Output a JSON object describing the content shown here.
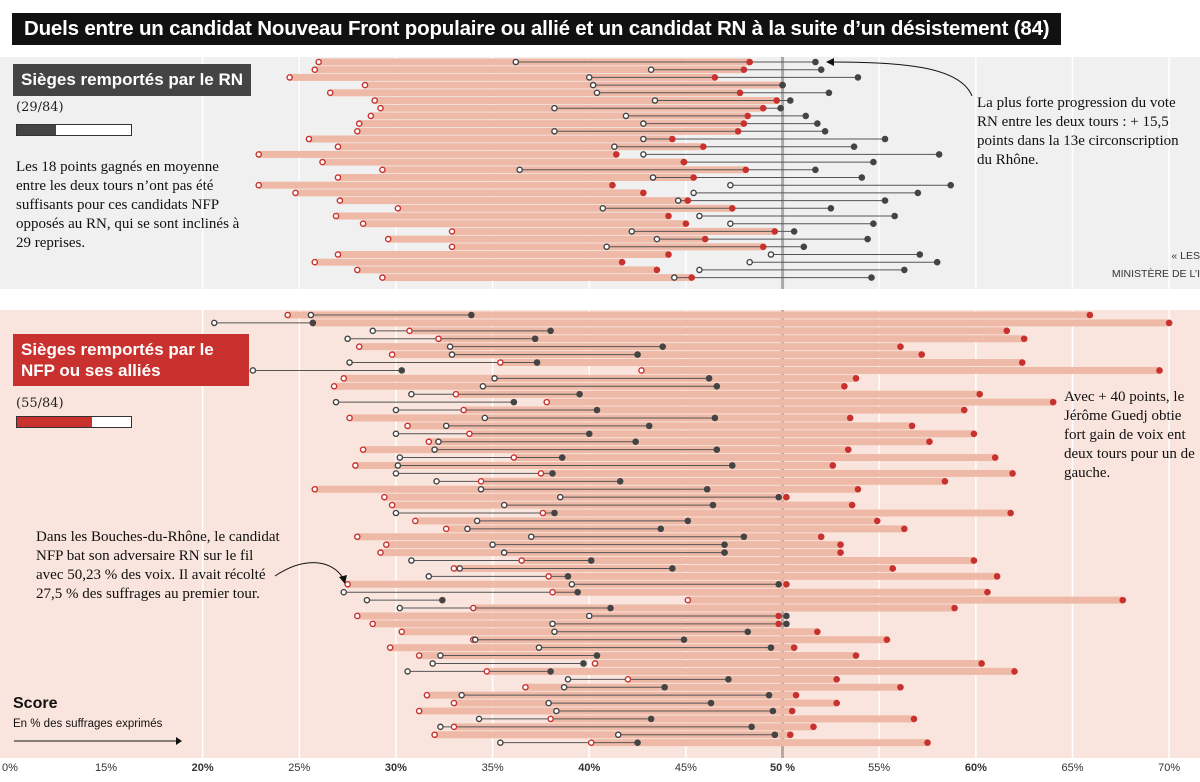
{
  "title": "Duels entre un candidat Nouveau Front populaire ou allié et un candidat RN à la suite d’un désistement (84)",
  "rn_section": {
    "label": "Sièges remportés par le RN",
    "count_text": "(29/84)",
    "won": 29,
    "total": 84,
    "note": "Les 18 points gagnés en moyenne entre les deux tours n’ont pas été suffisants pour ces candidats NFP opposés au RN, qui se sont inclinés à 29 reprises.",
    "callout": "La plus forte progression du vote RN entre les deux tours : + 15,5 points dans la 13e circonscription du Rhône.",
    "source_line1": "« LES",
    "source_line2": "MINISTÈRE DE L’I"
  },
  "nfp_section": {
    "label": "Sièges remportés par le NFP ou ses alliés",
    "count_text": "(55/84)",
    "won": 55,
    "total": 84,
    "callout_right": "Avec + 40 points, le Jérôme Guedj obtie fort gain de voix ent deux tours pour un de gauche.",
    "callout_left": "Dans les Bouches-du-Rhône, le candidat NFP bat son adversaire RN sur le fil avec 50,23 % des voix. Il avait récolté 27,5 % des suffrages au premier tour."
  },
  "score_label": "Score",
  "score_sublabel": "En % des suffrages exprimés",
  "colors": {
    "nfp": "#c8312d",
    "rn": "#444444",
    "nfp_bar": "#efb9a7",
    "rn_bar": "#ffffff"
  },
  "chart_data": {
    "type": "scatter",
    "xlabel": "En % des suffrages exprimés",
    "xlim": [
      0,
      70
    ],
    "x_ticks": [
      0,
      15,
      20,
      25,
      30,
      35,
      40,
      45,
      50,
      55,
      60,
      65,
      70
    ],
    "x_tick_labels": [
      "0%",
      "15%",
      "20%",
      "25%",
      "30%",
      "35%",
      "40%",
      "45%",
      "50 %",
      "55%",
      "60%",
      "65%",
      "70%"
    ],
    "legend": "first round = hollow marker, second round = filled marker",
    "rn_won": [
      {
        "nfp1": 26.0,
        "nfp2": 48.3,
        "rn1": 36.2,
        "rn2": 51.7
      },
      {
        "nfp1": 25.8,
        "nfp2": 48.0,
        "rn1": 43.2,
        "rn2": 52.0
      },
      {
        "nfp1": 24.5,
        "nfp2": 46.5,
        "rn1": 40.0,
        "rn2": 53.9
      },
      {
        "nfp1": 28.4,
        "nfp2": 50.0,
        "rn1": 40.2,
        "rn2": 50.0
      },
      {
        "nfp1": 26.6,
        "nfp2": 47.8,
        "rn1": 40.4,
        "rn2": 52.4
      },
      {
        "nfp1": 28.9,
        "nfp2": 49.7,
        "rn1": 43.4,
        "rn2": 50.4
      },
      {
        "nfp1": 29.2,
        "nfp2": 49.0,
        "rn1": 38.2,
        "rn2": 49.9
      },
      {
        "nfp1": 28.7,
        "nfp2": 48.2,
        "rn1": 41.9,
        "rn2": 51.2
      },
      {
        "nfp1": 28.1,
        "nfp2": 48.0,
        "rn1": 42.8,
        "rn2": 51.8
      },
      {
        "nfp1": 28.0,
        "nfp2": 47.7,
        "rn1": 38.2,
        "rn2": 52.2
      },
      {
        "nfp1": 25.5,
        "nfp2": 44.3,
        "rn1": 42.8,
        "rn2": 55.3
      },
      {
        "nfp1": 27.0,
        "nfp2": 45.9,
        "rn1": 41.3,
        "rn2": 53.7
      },
      {
        "nfp1": 22.9,
        "nfp2": 41.4,
        "rn1": 42.8,
        "rn2": 58.1
      },
      {
        "nfp1": 26.2,
        "nfp2": 44.9,
        "rn1": 44.9,
        "rn2": 54.7
      },
      {
        "nfp1": 29.3,
        "nfp2": 48.1,
        "rn1": 36.4,
        "rn2": 51.7
      },
      {
        "nfp1": 27.0,
        "nfp2": 45.4,
        "rn1": 43.3,
        "rn2": 54.1
      },
      {
        "nfp1": 22.9,
        "nfp2": 41.2,
        "rn1": 47.3,
        "rn2": 58.7
      },
      {
        "nfp1": 24.8,
        "nfp2": 42.8,
        "rn1": 45.4,
        "rn2": 57.0
      },
      {
        "nfp1": 27.1,
        "nfp2": 45.1,
        "rn1": 44.6,
        "rn2": 55.3
      },
      {
        "nfp1": 30.1,
        "nfp2": 47.4,
        "rn1": 40.7,
        "rn2": 52.5
      },
      {
        "nfp1": 26.9,
        "nfp2": 44.1,
        "rn1": 45.7,
        "rn2": 55.8
      },
      {
        "nfp1": 28.3,
        "nfp2": 45.0,
        "rn1": 47.3,
        "rn2": 54.7
      },
      {
        "nfp1": 32.9,
        "nfp2": 49.6,
        "rn1": 42.2,
        "rn2": 50.6
      },
      {
        "nfp1": 29.6,
        "nfp2": 46.0,
        "rn1": 43.5,
        "rn2": 54.4
      },
      {
        "nfp1": 32.9,
        "nfp2": 49.0,
        "rn1": 40.9,
        "rn2": 51.1
      },
      {
        "nfp1": 27.0,
        "nfp2": 44.1,
        "rn1": 49.4,
        "rn2": 57.1
      },
      {
        "nfp1": 25.8,
        "nfp2": 41.7,
        "rn1": 48.3,
        "rn2": 58.0
      },
      {
        "nfp1": 28.0,
        "nfp2": 43.5,
        "rn1": 45.7,
        "rn2": 56.3
      },
      {
        "nfp1": 29.3,
        "nfp2": 45.3,
        "rn1": 44.4,
        "rn2": 54.6
      }
    ],
    "nfp_won": [
      {
        "nfp1": 24.4,
        "nfp2": 65.9,
        "rn1": 25.6,
        "rn2": 33.9
      },
      {
        "nfp1": 25.7,
        "nfp2": 70.0,
        "rn1": 20.6,
        "rn2": 25.7
      },
      {
        "nfp1": 30.7,
        "nfp2": 61.6,
        "rn1": 28.8,
        "rn2": 38.0
      },
      {
        "nfp1": 32.2,
        "nfp2": 62.5,
        "rn1": 27.5,
        "rn2": 37.2
      },
      {
        "nfp1": 28.1,
        "nfp2": 56.1,
        "rn1": 32.8,
        "rn2": 43.8
      },
      {
        "nfp1": 29.8,
        "nfp2": 57.2,
        "rn1": 32.9,
        "rn2": 42.5
      },
      {
        "nfp1": 35.4,
        "nfp2": 62.4,
        "rn1": 27.6,
        "rn2": 37.3
      },
      {
        "nfp1": 42.7,
        "nfp2": 69.5,
        "rn1": 22.6,
        "rn2": 30.3
      },
      {
        "nfp1": 27.3,
        "nfp2": 53.8,
        "rn1": 35.1,
        "rn2": 46.2
      },
      {
        "nfp1": 26.8,
        "nfp2": 53.2,
        "rn1": 34.5,
        "rn2": 46.6
      },
      {
        "nfp1": 33.1,
        "nfp2": 60.2,
        "rn1": 30.8,
        "rn2": 39.5
      },
      {
        "nfp1": 37.8,
        "nfp2": 64.0,
        "rn1": 26.9,
        "rn2": 36.1
      },
      {
        "nfp1": 33.5,
        "nfp2": 59.4,
        "rn1": 30.0,
        "rn2": 40.4
      },
      {
        "nfp1": 27.6,
        "nfp2": 53.5,
        "rn1": 34.6,
        "rn2": 46.5
      },
      {
        "nfp1": 30.6,
        "nfp2": 56.7,
        "rn1": 32.6,
        "rn2": 43.1
      },
      {
        "nfp1": 33.8,
        "nfp2": 59.9,
        "rn1": 30.0,
        "rn2": 40.0
      },
      {
        "nfp1": 31.7,
        "nfp2": 57.6,
        "rn1": 32.2,
        "rn2": 42.4
      },
      {
        "nfp1": 28.3,
        "nfp2": 53.4,
        "rn1": 32.0,
        "rn2": 46.6
      },
      {
        "nfp1": 36.1,
        "nfp2": 61.0,
        "rn1": 30.2,
        "rn2": 38.6
      },
      {
        "nfp1": 27.9,
        "nfp2": 52.6,
        "rn1": 30.1,
        "rn2": 47.4
      },
      {
        "nfp1": 37.5,
        "nfp2": 61.9,
        "rn1": 30.0,
        "rn2": 38.1
      },
      {
        "nfp1": 34.4,
        "nfp2": 58.4,
        "rn1": 32.1,
        "rn2": 41.6
      },
      {
        "nfp1": 25.8,
        "nfp2": 53.9,
        "rn1": 34.4,
        "rn2": 46.1
      },
      {
        "nfp1": 29.4,
        "nfp2": 50.2,
        "rn1": 38.5,
        "rn2": 49.8
      },
      {
        "nfp1": 29.8,
        "nfp2": 53.6,
        "rn1": 35.6,
        "rn2": 46.4
      },
      {
        "nfp1": 37.6,
        "nfp2": 61.8,
        "rn1": 30.0,
        "rn2": 38.2
      },
      {
        "nfp1": 31.0,
        "nfp2": 54.9,
        "rn1": 34.2,
        "rn2": 45.1
      },
      {
        "nfp1": 32.6,
        "nfp2": 56.3,
        "rn1": 33.7,
        "rn2": 43.7
      },
      {
        "nfp1": 28.0,
        "nfp2": 52.0,
        "rn1": 37.0,
        "rn2": 48.0
      },
      {
        "nfp1": 29.5,
        "nfp2": 53.0,
        "rn1": 35.0,
        "rn2": 47.0
      },
      {
        "nfp1": 29.2,
        "nfp2": 53.0,
        "rn1": 35.6,
        "rn2": 47.0
      },
      {
        "nfp1": 36.5,
        "nfp2": 59.9,
        "rn1": 30.8,
        "rn2": 40.1
      },
      {
        "nfp1": 33.0,
        "nfp2": 55.7,
        "rn1": 33.3,
        "rn2": 44.3
      },
      {
        "nfp1": 37.9,
        "nfp2": 61.1,
        "rn1": 31.7,
        "rn2": 38.9
      },
      {
        "nfp1": 27.5,
        "nfp2": 50.2,
        "rn1": 39.1,
        "rn2": 49.8
      },
      {
        "nfp1": 38.1,
        "nfp2": 60.6,
        "rn1": 27.3,
        "rn2": 39.4
      },
      {
        "nfp1": 45.1,
        "nfp2": 67.6,
        "rn1": 28.5,
        "rn2": 32.4
      },
      {
        "nfp1": 34.0,
        "nfp2": 58.9,
        "rn1": 30.2,
        "rn2": 41.1
      },
      {
        "nfp1": 28.0,
        "nfp2": 49.8,
        "rn1": 40.0,
        "rn2": 50.2
      },
      {
        "nfp1": 28.8,
        "nfp2": 49.8,
        "rn1": 38.1,
        "rn2": 50.2
      },
      {
        "nfp1": 30.3,
        "nfp2": 51.8,
        "rn1": 38.2,
        "rn2": 48.2
      },
      {
        "nfp1": 34.0,
        "nfp2": 55.4,
        "rn1": 34.1,
        "rn2": 44.9
      },
      {
        "nfp1": 29.7,
        "nfp2": 50.6,
        "rn1": 37.4,
        "rn2": 49.4
      },
      {
        "nfp1": 31.2,
        "nfp2": 53.8,
        "rn1": 32.3,
        "rn2": 40.4
      },
      {
        "nfp1": 40.3,
        "nfp2": 60.3,
        "rn1": 31.9,
        "rn2": 39.7
      },
      {
        "nfp1": 34.7,
        "nfp2": 62.0,
        "rn1": 30.6,
        "rn2": 38.0
      },
      {
        "nfp1": 42.0,
        "nfp2": 52.8,
        "rn1": 38.9,
        "rn2": 47.2
      },
      {
        "nfp1": 36.7,
        "nfp2": 56.1,
        "rn1": 38.7,
        "rn2": 43.9
      },
      {
        "nfp1": 31.6,
        "nfp2": 50.7,
        "rn1": 33.4,
        "rn2": 49.3
      },
      {
        "nfp1": 33.0,
        "nfp2": 52.8,
        "rn1": 37.9,
        "rn2": 46.3
      },
      {
        "nfp1": 31.2,
        "nfp2": 50.5,
        "rn1": 38.3,
        "rn2": 49.5
      },
      {
        "nfp1": 38.0,
        "nfp2": 56.8,
        "rn1": 34.3,
        "rn2": 43.2
      },
      {
        "nfp1": 33.0,
        "nfp2": 51.6,
        "rn1": 32.3,
        "rn2": 48.4
      },
      {
        "nfp1": 32.0,
        "nfp2": 50.4,
        "rn1": 41.5,
        "rn2": 49.6
      },
      {
        "nfp1": 40.1,
        "nfp2": 57.5,
        "rn1": 35.4,
        "rn2": 42.5
      }
    ]
  }
}
